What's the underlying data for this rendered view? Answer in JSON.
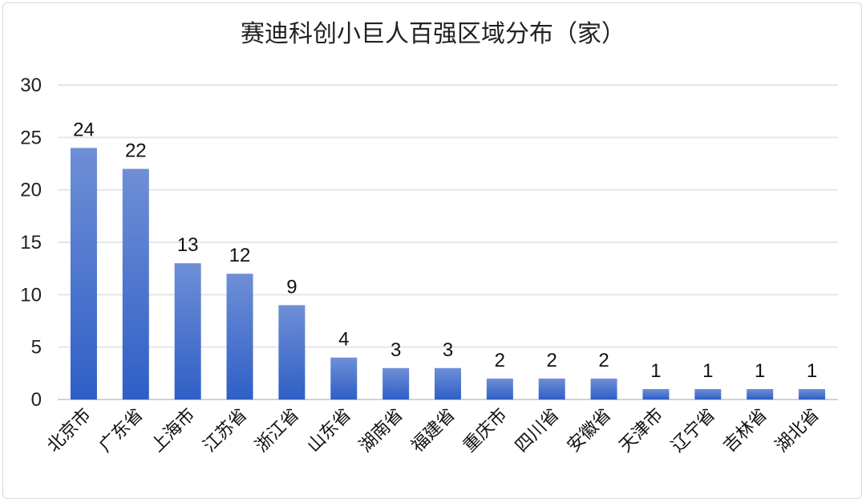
{
  "chart_data": {
    "type": "bar",
    "title": "赛迪科创小巨人百强区域分布（家）",
    "xlabel": "",
    "ylabel": "",
    "ylim": [
      0,
      30
    ],
    "yticks": [
      0,
      5,
      10,
      15,
      20,
      25,
      30
    ],
    "grid": true,
    "legend": "none",
    "categories": [
      "北京市",
      "广东省",
      "上海市",
      "江苏省",
      "浙江省",
      "山东省",
      "湖南省",
      "福建省",
      "重庆市",
      "四川省",
      "安徽省",
      "天津市",
      "辽宁省",
      "吉林省",
      "湖北省"
    ],
    "values": [
      24,
      22,
      13,
      12,
      9,
      4,
      3,
      3,
      2,
      2,
      2,
      1,
      1,
      1,
      1
    ],
    "colors": {
      "bar_top": "#6f8fd6",
      "bar_bottom": "#2f5fc6"
    }
  }
}
